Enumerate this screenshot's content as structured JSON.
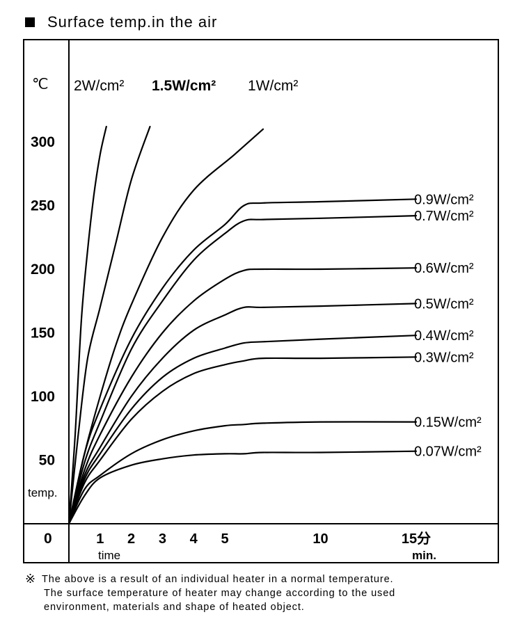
{
  "title": "Surface temp.in the air",
  "footnote": {
    "mark": "※",
    "lines": [
      "The above is a result of an individual heater in a normal temperature.",
      "The surface temperature of heater may change according to the used",
      "environment, materials and shape of heated object."
    ]
  },
  "chart_data": {
    "type": "line",
    "title": "Surface temp.in the air",
    "y_unit": "℃",
    "ylabel": "temp.",
    "xlabel": "time",
    "x_unit_ja": "分",
    "x_unit": "min.",
    "x_origin_label": "0",
    "xlim": [
      0,
      15
    ],
    "ylim": [
      0,
      320
    ],
    "x_scale": "piecewise",
    "y_ticks": [
      300,
      250,
      200,
      150,
      100,
      50
    ],
    "y_tick_labels": [
      "300",
      "250",
      "200",
      "150",
      "100",
      "50"
    ],
    "x_ticks": [
      1,
      2,
      3,
      4,
      5,
      10,
      15
    ],
    "x_tick_labels": [
      "1",
      "2",
      "3",
      "4",
      "5",
      "10",
      "15分"
    ],
    "grid": false,
    "series": [
      {
        "name": "2W/cm²",
        "label_position": "top",
        "x": [
          0,
          0.2,
          0.4,
          0.6,
          0.8,
          1.0,
          1.2
        ],
        "y": [
          0,
          70,
          160,
          215,
          258,
          290,
          312
        ]
      },
      {
        "name": "1.5W/cm²",
        "label_position": "top",
        "x": [
          0,
          0.3,
          0.6,
          1.0,
          1.5,
          2.0,
          2.6
        ],
        "y": [
          0,
          70,
          130,
          170,
          220,
          270,
          312
        ]
      },
      {
        "name": "1W/cm²",
        "label_position": "top",
        "x": [
          0,
          0.5,
          1.0,
          1.5,
          2.0,
          3.0,
          4.0,
          5.5,
          7.0
        ],
        "y": [
          0,
          55,
          100,
          140,
          172,
          225,
          262,
          290,
          310
        ]
      },
      {
        "name": "0.9W/cm²",
        "label_position": "right",
        "x": [
          0,
          0.5,
          1.0,
          2.0,
          3.0,
          4.0,
          5.0,
          6.0,
          7.0,
          10.0,
          15.0
        ],
        "y": [
          0,
          55,
          90,
          145,
          185,
          215,
          235,
          250,
          252,
          253,
          255
        ]
      },
      {
        "name": "0.7W/cm²",
        "label_position": "right",
        "x": [
          0,
          0.5,
          1.0,
          2.0,
          3.0,
          4.0,
          5.0,
          6.0,
          7.0,
          10.0,
          15.0
        ],
        "y": [
          0,
          48,
          80,
          137,
          175,
          207,
          228,
          238,
          239,
          240,
          242
        ]
      },
      {
        "name": "0.6W/cm²",
        "label_position": "right",
        "x": [
          0,
          0.5,
          1.0,
          2.0,
          3.0,
          4.0,
          5.0,
          6.0,
          7.0,
          10.0,
          15.0
        ],
        "y": [
          0,
          42,
          70,
          115,
          150,
          175,
          192,
          199,
          200,
          200,
          201
        ]
      },
      {
        "name": "0.5W/cm²",
        "label_position": "right",
        "x": [
          0,
          0.5,
          1.0,
          2.0,
          3.0,
          4.0,
          5.0,
          6.0,
          7.0,
          10.0,
          15.0
        ],
        "y": [
          0,
          38,
          60,
          100,
          130,
          152,
          164,
          170,
          170,
          171,
          173
        ]
      },
      {
        "name": "0.4W/cm²",
        "label_position": "right",
        "x": [
          0,
          0.5,
          1.0,
          2.0,
          3.0,
          4.0,
          5.0,
          6.0,
          7.0,
          10.0,
          15.0
        ],
        "y": [
          0,
          35,
          55,
          90,
          115,
          130,
          138,
          142,
          143,
          145,
          148
        ]
      },
      {
        "name": "0.3W/cm²",
        "label_position": "right",
        "x": [
          0,
          0.5,
          1.0,
          2.0,
          3.0,
          4.0,
          5.0,
          6.0,
          7.0,
          10.0,
          15.0
        ],
        "y": [
          0,
          32,
          50,
          82,
          104,
          118,
          125,
          128,
          130,
          130,
          131
        ]
      },
      {
        "name": "0.15W/cm²",
        "label_position": "right",
        "x": [
          0,
          0.5,
          1.0,
          2.0,
          3.0,
          4.0,
          5.0,
          6.0,
          7.0,
          10.0,
          15.0
        ],
        "y": [
          0,
          27,
          38,
          55,
          66,
          73,
          77,
          78,
          79,
          80,
          80
        ]
      },
      {
        "name": "0.07W/cm²",
        "label_position": "right",
        "x": [
          0,
          0.5,
          1.0,
          2.0,
          3.0,
          4.0,
          5.0,
          6.0,
          7.0,
          10.0,
          15.0
        ],
        "y": [
          0,
          22,
          36,
          46,
          51,
          54,
          55,
          55,
          56,
          56,
          57
        ]
      }
    ]
  }
}
